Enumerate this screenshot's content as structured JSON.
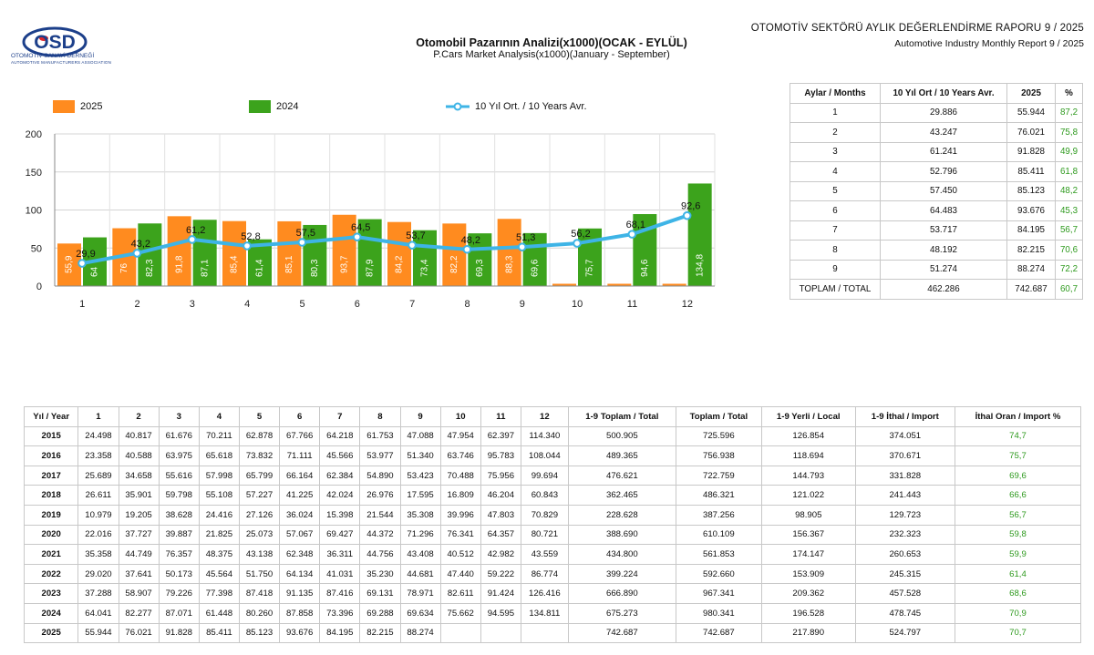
{
  "header": {
    "logo_name": "OSD",
    "logo_text": "OTOMOTİV SANAYİ DERNEĞİ",
    "logo_subtext": "AUTOMOTIVE MANUFACTURERS ASSOCIATION",
    "report_title_tr": "OTOMOTİV SEKTÖRÜ AYLIK DEĞERLENDİRME RAPORU 9 / 2025",
    "report_title_en": "Automotive Industry Monthly Report 9 / 2025"
  },
  "colors": {
    "y2025": "#ff8b1f",
    "y2024": "#3ca31c",
    "avg": "#3eb4e6",
    "navy": "#1c3f8a",
    "red": "#e1262b"
  },
  "chart_data": {
    "type": "bar",
    "title": "Otomobil Pazarının Analizi(x1000)(OCAK - EYLÜL)",
    "subtitle": "P.Cars Market Analysis(x1000)(January - September)",
    "categories": [
      "1",
      "2",
      "3",
      "4",
      "5",
      "6",
      "7",
      "8",
      "9",
      "10",
      "11",
      "12"
    ],
    "y_ticks": [
      "0",
      "50",
      "100",
      "150",
      "200"
    ],
    "ylim": [
      0,
      200
    ],
    "legend_position": "top",
    "series": [
      {
        "name": "2025",
        "type": "bar",
        "values": [
          55.9,
          76,
          91.8,
          85.4,
          85.1,
          93.7,
          84.2,
          82.2,
          88.3,
          0,
          0,
          0
        ],
        "labels": [
          "55,9",
          "76",
          "91,8",
          "85,4",
          "85,1",
          "93,7",
          "84,2",
          "82,2",
          "88,3",
          "",
          "",
          ""
        ]
      },
      {
        "name": "2024",
        "type": "bar",
        "values": [
          64,
          82.3,
          87.1,
          61.4,
          80.3,
          87.9,
          73.4,
          69.3,
          69.6,
          75.7,
          94.6,
          134.8
        ],
        "labels": [
          "64",
          "82,3",
          "87,1",
          "61,4",
          "80,3",
          "87,9",
          "73,4",
          "69,3",
          "69,6",
          "75,7",
          "94,6",
          "134,8"
        ]
      },
      {
        "name": "10 Yıl Ort. / 10 Years Avr.",
        "type": "line",
        "values": [
          29.9,
          43.2,
          61.2,
          52.8,
          57.5,
          64.5,
          53.7,
          48.2,
          51.3,
          56.2,
          68.1,
          92.6
        ],
        "labels": [
          "29,9",
          "43,2",
          "61,2",
          "52,8",
          "57,5",
          "64,5",
          "53,7",
          "48,2",
          "51,3",
          "56,2",
          "68,1",
          "92,6"
        ]
      }
    ]
  },
  "months_table": {
    "headers": [
      "Aylar / Months",
      "10 Yıl Ort / 10 Years Avr.",
      "2025",
      "%"
    ],
    "rows": [
      [
        "1",
        "29.886",
        "55.944",
        "87,2"
      ],
      [
        "2",
        "43.247",
        "76.021",
        "75,8"
      ],
      [
        "3",
        "61.241",
        "91.828",
        "49,9"
      ],
      [
        "4",
        "52.796",
        "85.411",
        "61,8"
      ],
      [
        "5",
        "57.450",
        "85.123",
        "48,2"
      ],
      [
        "6",
        "64.483",
        "93.676",
        "45,3"
      ],
      [
        "7",
        "53.717",
        "84.195",
        "56,7"
      ],
      [
        "8",
        "48.192",
        "82.215",
        "70,6"
      ],
      [
        "9",
        "51.274",
        "88.274",
        "72,2"
      ],
      [
        "TOPLAM / TOTAL",
        "462.286",
        "742.687",
        "60,7"
      ]
    ]
  },
  "years_table": {
    "headers": [
      "Yıl / Year",
      "1",
      "2",
      "3",
      "4",
      "5",
      "6",
      "7",
      "8",
      "9",
      "10",
      "11",
      "12",
      "1-9 Toplam / Total",
      "Toplam / Total",
      "1-9 Yerli / Local",
      "1-9 İthal / Import",
      "İthal Oran / Import %"
    ],
    "rows": [
      [
        "2015",
        "24.498",
        "40.817",
        "61.676",
        "70.211",
        "62.878",
        "67.766",
        "64.218",
        "61.753",
        "47.088",
        "47.954",
        "62.397",
        "114.340",
        "500.905",
        "725.596",
        "126.854",
        "374.051",
        "74,7"
      ],
      [
        "2016",
        "23.358",
        "40.588",
        "63.975",
        "65.618",
        "73.832",
        "71.111",
        "45.566",
        "53.977",
        "51.340",
        "63.746",
        "95.783",
        "108.044",
        "489.365",
        "756.938",
        "118.694",
        "370.671",
        "75,7"
      ],
      [
        "2017",
        "25.689",
        "34.658",
        "55.616",
        "57.998",
        "65.799",
        "66.164",
        "62.384",
        "54.890",
        "53.423",
        "70.488",
        "75.956",
        "99.694",
        "476.621",
        "722.759",
        "144.793",
        "331.828",
        "69,6"
      ],
      [
        "2018",
        "26.611",
        "35.901",
        "59.798",
        "55.108",
        "57.227",
        "41.225",
        "42.024",
        "26.976",
        "17.595",
        "16.809",
        "46.204",
        "60.843",
        "362.465",
        "486.321",
        "121.022",
        "241.443",
        "66,6"
      ],
      [
        "2019",
        "10.979",
        "19.205",
        "38.628",
        "24.416",
        "27.126",
        "36.024",
        "15.398",
        "21.544",
        "35.308",
        "39.996",
        "47.803",
        "70.829",
        "228.628",
        "387.256",
        "98.905",
        "129.723",
        "56,7"
      ],
      [
        "2020",
        "22.016",
        "37.727",
        "39.887",
        "21.825",
        "25.073",
        "57.067",
        "69.427",
        "44.372",
        "71.296",
        "76.341",
        "64.357",
        "80.721",
        "388.690",
        "610.109",
        "156.367",
        "232.323",
        "59,8"
      ],
      [
        "2021",
        "35.358",
        "44.749",
        "76.357",
        "48.375",
        "43.138",
        "62.348",
        "36.311",
        "44.756",
        "43.408",
        "40.512",
        "42.982",
        "43.559",
        "434.800",
        "561.853",
        "174.147",
        "260.653",
        "59,9"
      ],
      [
        "2022",
        "29.020",
        "37.641",
        "50.173",
        "45.564",
        "51.750",
        "64.134",
        "41.031",
        "35.230",
        "44.681",
        "47.440",
        "59.222",
        "86.774",
        "399.224",
        "592.660",
        "153.909",
        "245.315",
        "61,4"
      ],
      [
        "2023",
        "37.288",
        "58.907",
        "79.226",
        "77.398",
        "87.418",
        "91.135",
        "87.416",
        "69.131",
        "78.971",
        "82.611",
        "91.424",
        "126.416",
        "666.890",
        "967.341",
        "209.362",
        "457.528",
        "68,6"
      ],
      [
        "2024",
        "64.041",
        "82.277",
        "87.071",
        "61.448",
        "80.260",
        "87.858",
        "73.396",
        "69.288",
        "69.634",
        "75.662",
        "94.595",
        "134.811",
        "675.273",
        "980.341",
        "196.528",
        "478.745",
        "70,9"
      ],
      [
        "2025",
        "55.944",
        "76.021",
        "91.828",
        "85.411",
        "85.123",
        "93.676",
        "84.195",
        "82.215",
        "88.274",
        "",
        "",
        "",
        "742.687",
        "742.687",
        "217.890",
        "524.797",
        "70,7"
      ]
    ]
  }
}
